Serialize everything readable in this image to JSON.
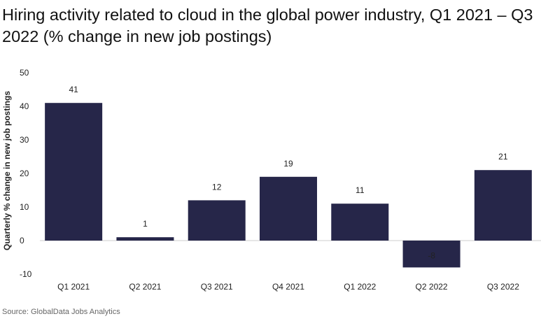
{
  "title": "Hiring activity related to cloud in the global power industry, Q1 2021 – Q3 2022 (% change in new job postings)",
  "source": "Source: GlobalData Jobs Analytics",
  "colors": {
    "bar": "#262649",
    "zero_line": "#cccccc"
  },
  "chart_data": {
    "type": "bar",
    "title": "Hiring activity related to cloud in the global power industry, Q1 2021 – Q3 2022 (% change in new job postings)",
    "xlabel": "",
    "ylabel": "Quarterly % change in new job postings",
    "categories": [
      "Q1 2021",
      "Q2 2021",
      "Q3 2021",
      "Q4 2021",
      "Q1 2022",
      "Q2 2022",
      "Q3 2022"
    ],
    "values": [
      41,
      1,
      12,
      19,
      11,
      -8,
      21
    ],
    "value_labels": [
      "41",
      "1",
      "12",
      "19",
      "11",
      "-8",
      "21"
    ],
    "ylim": [
      -10,
      50
    ],
    "yticks": [
      -10,
      0,
      10,
      20,
      30,
      40,
      50
    ],
    "ytick_labels": [
      "-10",
      "0",
      "10",
      "20",
      "30",
      "40",
      "50"
    ],
    "grid": false,
    "legend": "none"
  }
}
